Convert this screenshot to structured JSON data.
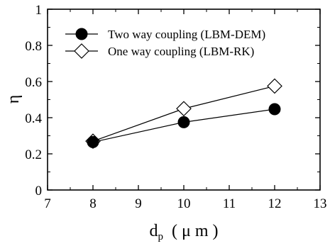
{
  "chart_data": {
    "type": "line",
    "xlim": [
      7,
      13
    ],
    "ylim": [
      0,
      1
    ],
    "x_ticks": [
      "7",
      "8",
      "9",
      "10",
      "11",
      "12",
      "13"
    ],
    "y_ticks": [
      "0",
      "0.2",
      "0.4",
      "0.6",
      "0.8",
      "1"
    ],
    "xlabel": {
      "main": "d",
      "sub": "p",
      "unit": "( μ m )"
    },
    "ylabel": "η",
    "legend_position": "top-left",
    "grid": false,
    "series": [
      {
        "name": "Two way coupling (LBM-DEM)",
        "marker": "filled-circle",
        "color": "#000000",
        "x": [
          8,
          10,
          12
        ],
        "y": [
          0.265,
          0.375,
          0.447
        ]
      },
      {
        "name": "One way coupling (LBM-RK)",
        "marker": "open-diamond",
        "color": "#000000",
        "x": [
          8,
          10,
          12
        ],
        "y": [
          0.27,
          0.45,
          0.575
        ]
      }
    ]
  }
}
